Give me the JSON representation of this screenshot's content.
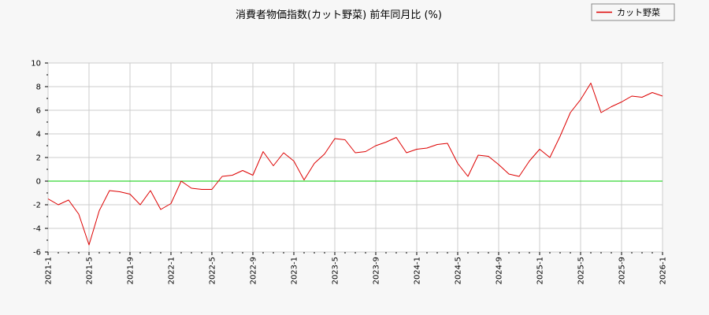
{
  "chart_data": {
    "type": "line",
    "title": "消費者物価指数(カット野菜) 前年同月比 (%)",
    "xlabel": "",
    "ylabel": "",
    "ylim": [
      -6,
      10
    ],
    "yticks": [
      -6,
      -4,
      -2,
      0,
      2,
      4,
      6,
      8,
      10
    ],
    "xticks": [
      "2021-1",
      "2021-5",
      "2021-9",
      "2022-1",
      "2022-5",
      "2022-9",
      "2023-1",
      "2023-5",
      "2023-9",
      "2024-1",
      "2024-5",
      "2024-9",
      "2025-1",
      "2025-5",
      "2025-9",
      "2026-1"
    ],
    "grid": true,
    "legend_position": "top-right",
    "zero_line_color": "#00cc00",
    "series": [
      {
        "name": "カット野菜",
        "color": "#dd0000",
        "x": [
          "2021-1",
          "2021-2",
          "2021-3",
          "2021-4",
          "2021-5",
          "2021-6",
          "2021-7",
          "2021-8",
          "2021-9",
          "2021-10",
          "2021-11",
          "2021-12",
          "2022-1",
          "2022-2",
          "2022-3",
          "2022-4",
          "2022-5",
          "2022-6",
          "2022-7",
          "2022-8",
          "2022-9",
          "2022-10",
          "2022-11",
          "2022-12",
          "2023-1",
          "2023-2",
          "2023-3",
          "2023-4",
          "2023-5",
          "2023-6",
          "2023-7",
          "2023-8",
          "2023-9",
          "2023-10",
          "2023-11",
          "2023-12",
          "2024-1",
          "2024-2",
          "2024-3",
          "2024-4",
          "2024-5",
          "2024-6",
          "2024-7",
          "2024-8",
          "2024-9",
          "2024-10",
          "2024-11",
          "2024-12",
          "2025-1",
          "2025-2",
          "2025-3",
          "2025-4",
          "2025-5",
          "2025-6",
          "2025-7",
          "2025-8",
          "2025-9",
          "2025-10",
          "2025-11",
          "2025-12",
          "2026-1"
        ],
        "values": [
          -1.5,
          -2.0,
          -1.6,
          -2.8,
          -5.4,
          -2.5,
          -0.8,
          -0.9,
          -1.1,
          -2.0,
          -0.8,
          -2.4,
          -1.9,
          0.0,
          -0.6,
          -0.7,
          -0.7,
          0.4,
          0.5,
          0.9,
          0.5,
          2.5,
          1.3,
          2.4,
          1.7,
          0.1,
          1.5,
          2.3,
          3.6,
          3.5,
          2.4,
          2.5,
          3.0,
          3.3,
          3.7,
          2.4,
          2.7,
          2.8,
          3.1,
          3.2,
          1.5,
          0.4,
          2.2,
          2.1,
          1.4,
          0.6,
          0.4,
          1.7,
          2.7,
          2.0,
          3.8,
          5.8,
          6.9,
          8.3,
          5.8,
          6.3,
          6.7,
          7.2,
          7.1,
          7.5,
          7.2
        ]
      }
    ]
  }
}
